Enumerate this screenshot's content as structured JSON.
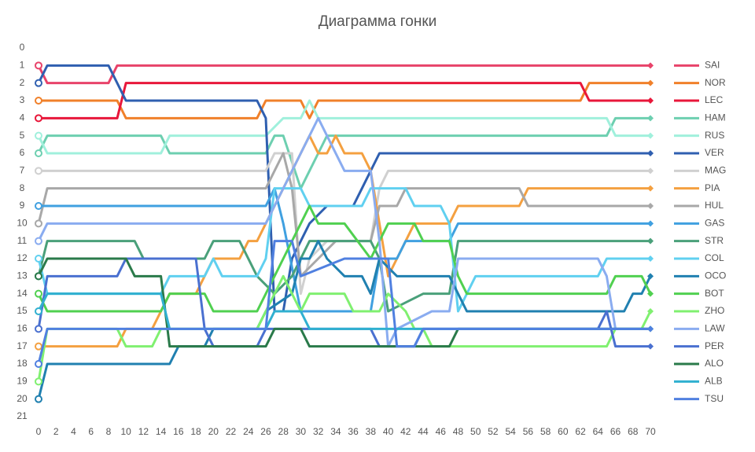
{
  "chart_data": {
    "type": "line",
    "title": "Диаграмма гонки",
    "xlim": [
      0,
      71
    ],
    "xticks": [
      0,
      2,
      4,
      6,
      8,
      10,
      12,
      14,
      16,
      18,
      20,
      22,
      24,
      26,
      28,
      30,
      32,
      34,
      36,
      38,
      40,
      42,
      44,
      46,
      48,
      50,
      52,
      54,
      56,
      58,
      60,
      62,
      64,
      66,
      68,
      70
    ],
    "ylim": [
      0,
      21
    ],
    "yticks": [
      0,
      1,
      2,
      3,
      4,
      5,
      6,
      7,
      8,
      9,
      10,
      11,
      12,
      13,
      14,
      15,
      16,
      17,
      18,
      19,
      20,
      21
    ],
    "y_inverted": true,
    "series": [
      {
        "name": "SAI",
        "color": "#e8436a",
        "x": [
          0,
          1,
          8,
          9,
          70
        ],
        "values": [
          1,
          2,
          2,
          1,
          1
        ]
      },
      {
        "name": "NOR",
        "color": "#f0802a",
        "x": [
          0,
          9,
          10,
          25,
          26,
          30,
          31,
          32,
          62,
          63,
          70
        ],
        "values": [
          3,
          3,
          4,
          4,
          3,
          3,
          4,
          3,
          3,
          2,
          2
        ]
      },
      {
        "name": "LEC",
        "color": "#e8173a",
        "x": [
          0,
          9,
          10,
          62,
          63,
          70
        ],
        "values": [
          4,
          4,
          2,
          2,
          3,
          3
        ]
      },
      {
        "name": "HAM",
        "color": "#6dcfb0",
        "x": [
          0,
          1,
          14,
          15,
          26,
          27,
          28,
          30,
          31,
          32,
          33,
          65,
          66,
          70
        ],
        "values": [
          6,
          5,
          5,
          6,
          6,
          5,
          5,
          8,
          7,
          6,
          5,
          5,
          4,
          4
        ]
      },
      {
        "name": "RUS",
        "color": "#a0f0dc",
        "x": [
          0,
          1,
          14,
          15,
          26,
          28,
          30,
          31,
          32,
          65,
          66,
          70
        ],
        "values": [
          5,
          6,
          6,
          5,
          5,
          4,
          4,
          3,
          4,
          4,
          5,
          5
        ]
      },
      {
        "name": "VER",
        "color": "#2f5fb0",
        "x": [
          0,
          1,
          8,
          10,
          25,
          26,
          27,
          28,
          29,
          31,
          33,
          36,
          37,
          38,
          39,
          70
        ],
        "values": [
          2,
          1,
          1,
          3,
          3,
          4,
          15,
          15,
          12,
          10,
          9,
          9,
          8,
          7,
          6,
          6
        ]
      },
      {
        "name": "MAG",
        "color": "#d0d0d0",
        "x": [
          0,
          26,
          27,
          29,
          30,
          31,
          33,
          38,
          39,
          40,
          70
        ],
        "values": [
          7,
          7,
          6,
          6,
          14,
          12,
          11,
          11,
          8,
          7,
          7
        ]
      },
      {
        "name": "PIA",
        "color": "#f4a040",
        "x": [
          0,
          9,
          10,
          13,
          14,
          15,
          18,
          19,
          20,
          23,
          24,
          25,
          26,
          27,
          29,
          31,
          32,
          33,
          34,
          35,
          37,
          38,
          39,
          40,
          41,
          42,
          43,
          47,
          48,
          55,
          56,
          70
        ],
        "values": [
          17,
          17,
          16,
          16,
          15,
          14,
          14,
          13,
          12,
          12,
          11,
          11,
          10,
          9,
          7,
          5,
          6,
          6,
          5,
          6,
          6,
          7,
          10,
          13,
          12,
          11,
          10,
          10,
          9,
          9,
          8,
          8
        ]
      },
      {
        "name": "HUL",
        "color": "#a8a8a8",
        "x": [
          0,
          1,
          26,
          27,
          28,
          29,
          30,
          32,
          34,
          38,
          39,
          41,
          42,
          55,
          56,
          70
        ],
        "values": [
          10,
          8,
          8,
          7,
          6,
          8,
          13,
          12,
          11,
          11,
          9,
          9,
          8,
          8,
          9,
          9
        ]
      },
      {
        "name": "GAS",
        "color": "#40a0e0",
        "x": [
          0,
          26,
          27,
          28,
          30,
          38,
          39,
          41,
          42,
          47,
          48,
          70
        ],
        "values": [
          9,
          9,
          8,
          10,
          15,
          15,
          12,
          12,
          11,
          11,
          10,
          10
        ]
      },
      {
        "name": "STR",
        "color": "#4aa07a",
        "x": [
          0,
          1,
          11,
          12,
          19,
          20,
          23,
          25,
          27,
          29,
          31,
          38,
          39,
          40,
          44,
          47,
          48,
          70
        ],
        "values": [
          13,
          11,
          11,
          12,
          12,
          11,
          11,
          13,
          14,
          13,
          11,
          11,
          12,
          15,
          14,
          14,
          11,
          11
        ]
      },
      {
        "name": "COL",
        "color": "#60d0f0",
        "x": [
          0,
          1,
          14,
          15,
          19,
          20,
          21,
          25,
          26,
          27,
          30,
          31,
          37,
          38,
          42,
          43,
          46,
          47,
          48,
          50,
          64,
          65,
          70
        ],
        "values": [
          12,
          14,
          14,
          13,
          13,
          12,
          13,
          13,
          12,
          8,
          8,
          9,
          9,
          8,
          8,
          9,
          9,
          10,
          15,
          13,
          13,
          12,
          12
        ]
      },
      {
        "name": "OCO",
        "color": "#2080b0",
        "x": [
          0,
          1,
          15,
          16,
          19,
          20,
          25,
          26,
          29,
          30,
          31,
          32,
          33,
          35,
          37,
          38,
          39,
          41,
          47,
          48,
          49,
          67,
          68,
          69,
          70
        ],
        "values": [
          20,
          18,
          18,
          17,
          17,
          16,
          16,
          15,
          14,
          12,
          12,
          11,
          12,
          13,
          13,
          14,
          12,
          13,
          13,
          14,
          15,
          15,
          14,
          14,
          13
        ]
      },
      {
        "name": "BOT",
        "color": "#50d050",
        "x": [
          0,
          1,
          14,
          15,
          19,
          20,
          25,
          26,
          28,
          30,
          31,
          32,
          35,
          38,
          39,
          40,
          43,
          44,
          47,
          48,
          49,
          65,
          66,
          69,
          70
        ],
        "values": [
          14,
          15,
          15,
          14,
          14,
          15,
          15,
          14,
          12,
          10,
          9,
          10,
          10,
          12,
          11,
          10,
          10,
          11,
          11,
          13,
          14,
          14,
          13,
          13,
          14
        ]
      },
      {
        "name": "ZHO",
        "color": "#80f070",
        "x": [
          0,
          1,
          9,
          10,
          13,
          14,
          25,
          26,
          27,
          28,
          29,
          30,
          31,
          35,
          36,
          39,
          40,
          42,
          43,
          44,
          45,
          65,
          66,
          69,
          70
        ],
        "values": [
          19,
          16,
          16,
          17,
          17,
          16,
          16,
          15,
          14,
          13,
          14,
          15,
          14,
          14,
          15,
          15,
          14,
          15,
          16,
          16,
          17,
          17,
          16,
          16,
          15
        ]
      },
      {
        "name": "LAW",
        "color": "#8aacf0",
        "x": [
          0,
          1,
          26,
          27,
          29,
          31,
          32,
          33,
          35,
          38,
          39,
          40,
          41,
          45,
          47,
          48,
          64,
          65,
          66,
          69,
          70
        ],
        "values": [
          11,
          10,
          10,
          9,
          7,
          5,
          4,
          5,
          7,
          7,
          11,
          17,
          16,
          15,
          15,
          12,
          12,
          13,
          16,
          16,
          16
        ]
      },
      {
        "name": "PER",
        "color": "#4a70d0",
        "x": [
          0,
          1,
          9,
          10,
          18,
          19,
          20,
          25,
          26,
          38,
          39,
          43,
          44,
          64,
          65,
          66,
          70
        ],
        "values": [
          16,
          13,
          13,
          12,
          12,
          16,
          17,
          17,
          16,
          16,
          17,
          17,
          16,
          16,
          15,
          17,
          17
        ]
      },
      {
        "name": "ALO",
        "color": "#2a7a4a",
        "x": [
          0,
          1,
          10,
          11,
          14,
          15,
          26,
          27,
          30,
          31,
          47,
          48,
          70
        ],
        "values": [
          13,
          12,
          12,
          13,
          13,
          17,
          17,
          16,
          16,
          17,
          17,
          16,
          16
        ]
      },
      {
        "name": "ALB",
        "color": "#30b0d0",
        "x": [
          0,
          1,
          14,
          15,
          26,
          27,
          30,
          31,
          70
        ],
        "values": [
          15,
          14,
          14,
          16,
          16,
          15,
          15,
          16,
          16
        ]
      },
      {
        "name": "TSU",
        "color": "#5080e0",
        "x": [
          0,
          1,
          26,
          27,
          29,
          30,
          35,
          40,
          41,
          43,
          44,
          70
        ],
        "values": [
          18,
          16,
          16,
          11,
          11,
          13,
          12,
          12,
          17,
          17,
          16,
          16
        ]
      }
    ]
  }
}
